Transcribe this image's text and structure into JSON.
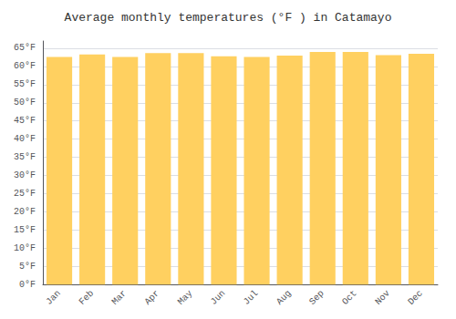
{
  "chart_data": {
    "type": "bar",
    "title": "Average monthly temperatures (°F ) in Catamayo",
    "categories": [
      "Jan",
      "Feb",
      "Mar",
      "Apr",
      "May",
      "Jun",
      "Jul",
      "Aug",
      "Sep",
      "Oct",
      "Nov",
      "Dec"
    ],
    "values": [
      62.6,
      63.3,
      62.6,
      63.7,
      63.7,
      62.8,
      62.6,
      63.0,
      64.0,
      64.0,
      63.1,
      63.5
    ],
    "color": "#FFD060",
    "ylim": [
      0,
      67
    ],
    "yticks": [
      {
        "value": 0,
        "label": "0°F"
      },
      {
        "value": 5,
        "label": "5°F"
      },
      {
        "value": 10,
        "label": "10°F"
      },
      {
        "value": 15,
        "label": "15°F"
      },
      {
        "value": 20,
        "label": "20°F"
      },
      {
        "value": 25,
        "label": "25°F"
      },
      {
        "value": 30,
        "label": "30°F"
      },
      {
        "value": 35,
        "label": "35°F"
      },
      {
        "value": 40,
        "label": "40°F"
      },
      {
        "value": 45,
        "label": "45°F"
      },
      {
        "value": 50,
        "label": "50°F"
      },
      {
        "value": 55,
        "label": "55°F"
      },
      {
        "value": 60,
        "label": "60°F"
      },
      {
        "value": 65,
        "label": "65°F"
      }
    ],
    "grid": true
  }
}
